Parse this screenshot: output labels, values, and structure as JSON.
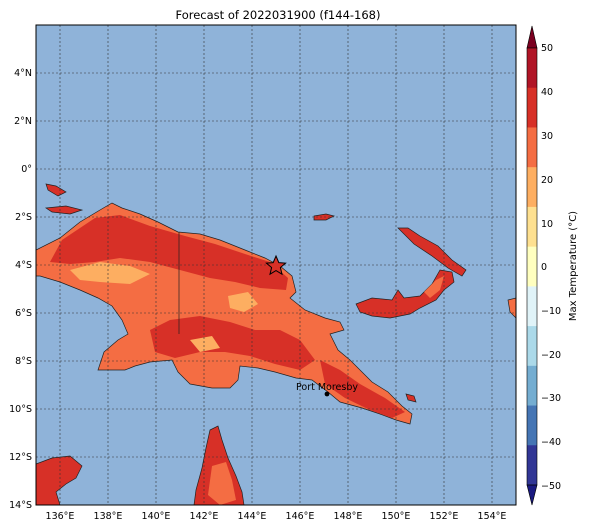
{
  "title": "Forecast of 2022031900 (f144-168)",
  "colorbar": {
    "label": "Max Temperature (°C)",
    "ticks": [
      "50",
      "40",
      "30",
      "20",
      "10",
      "0",
      "−10",
      "−20",
      "−30",
      "−40",
      "−50"
    ],
    "colors": [
      "#7a0020",
      "#b01426",
      "#d73027",
      "#f46d43",
      "#fdae61",
      "#fee090",
      "#ffffbf",
      "#e0f3f8",
      "#abd9e9",
      "#74add1",
      "#4575b4",
      "#313695",
      "#1a1a80"
    ]
  },
  "lon_ticks": [
    "136°E",
    "138°E",
    "140°E",
    "142°E",
    "144°E",
    "146°E",
    "148°E",
    "150°E",
    "152°E",
    "154°E"
  ],
  "lat_ticks": [
    "4°N",
    "2°N",
    "0°",
    "2°S",
    "4°S",
    "6°S",
    "8°S",
    "10°S",
    "12°S",
    "14°S"
  ],
  "city": {
    "name": "Port Moresby"
  },
  "colors": {
    "ocean": "#8fb3d9",
    "land_main": "#f46d43",
    "land_hot": "#d73027",
    "land_warm": "#fdae61"
  }
}
